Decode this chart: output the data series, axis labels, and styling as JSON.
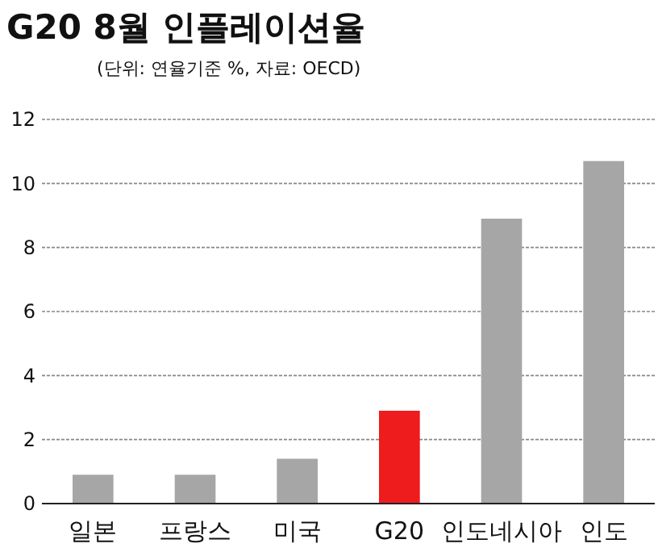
{
  "chart_data": {
    "type": "bar",
    "title": "G20 8월 인플레이션율",
    "subtitle": "(단위: 연율기준 %, 자료: OECD)",
    "categories": [
      "일본",
      "프랑스",
      "미국",
      "G20",
      "인도네시아",
      "인도"
    ],
    "values": [
      0.9,
      0.9,
      1.4,
      2.9,
      8.9,
      10.7
    ],
    "colors": [
      "#a6a6a6",
      "#a6a6a6",
      "#a6a6a6",
      "#ee1c1c",
      "#a6a6a6",
      "#a6a6a6"
    ],
    "ylim": [
      0,
      12
    ],
    "yticks": [
      0,
      2,
      4,
      6,
      8,
      10,
      12
    ],
    "grid": "y"
  }
}
